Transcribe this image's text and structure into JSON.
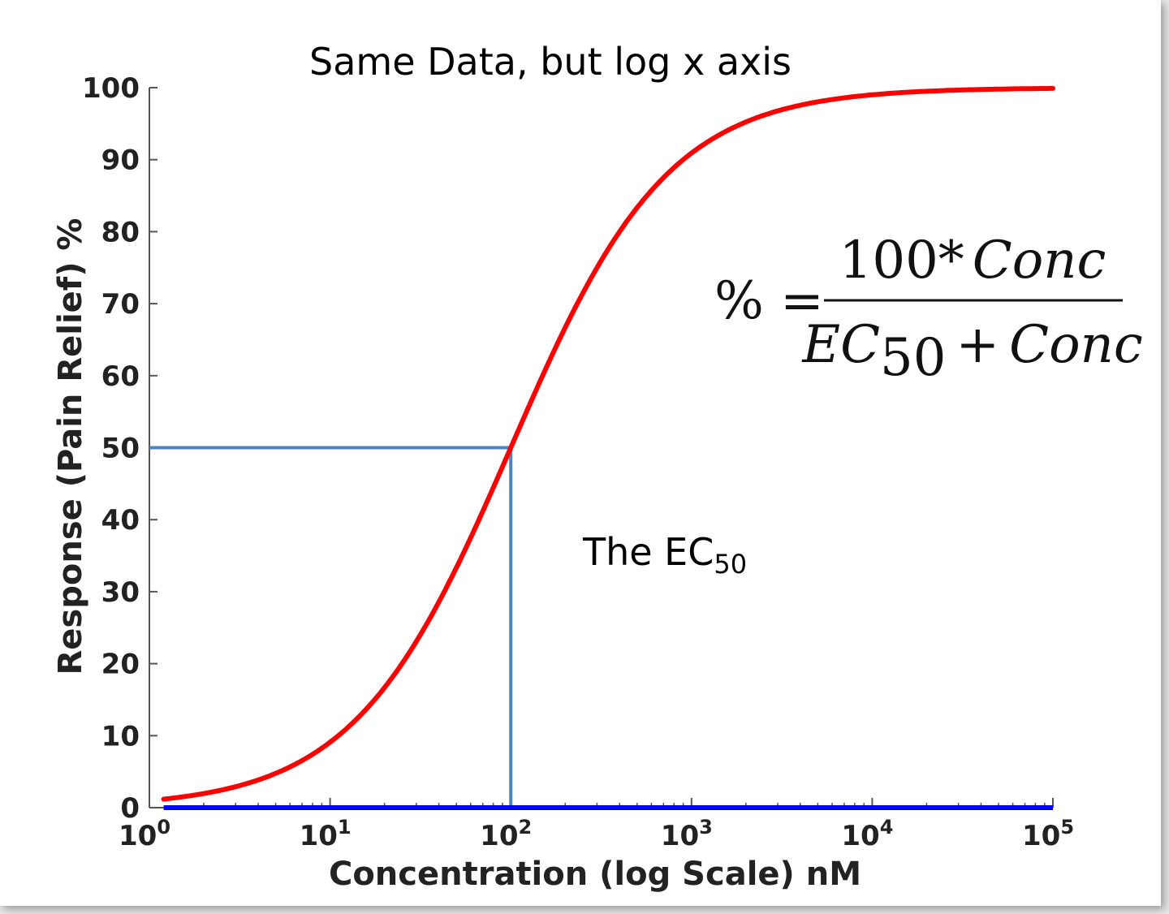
{
  "chart_data": {
    "type": "line",
    "title": "Same Data, but log x axis",
    "xlabel": "Concentration (log Scale) nM",
    "ylabel": "Response (Pain Relief) %",
    "xscale": "log",
    "xlim": [
      1,
      100000
    ],
    "ylim": [
      0,
      100
    ],
    "x_ticks": [
      {
        "base": "10",
        "exp": "0"
      },
      {
        "base": "10",
        "exp": "1"
      },
      {
        "base": "10",
        "exp": "2"
      },
      {
        "base": "10",
        "exp": "3"
      },
      {
        "base": "10",
        "exp": "4"
      },
      {
        "base": "10",
        "exp": "5"
      }
    ],
    "y_ticks": [
      "0",
      "10",
      "20",
      "30",
      "40",
      "50",
      "60",
      "70",
      "80",
      "90",
      "100"
    ],
    "ec50": 100,
    "ec50_response": 50,
    "curve": {
      "equation": "% = 100*Conc / (EC50 + Conc)",
      "x_start": 1.2,
      "x_end": 100000,
      "color": "#ff0000"
    },
    "ec50_guide_color": "#4f81bd",
    "baseline_color": "#0000ff",
    "annotation": {
      "text": "The EC",
      "subscript": "50"
    },
    "formula": {
      "lhs": "% =",
      "numerator": {
        "number": "100",
        "op": "*",
        "var": "Conc"
      },
      "denominator": {
        "var": "EC",
        "sub": "50",
        "op": "+",
        "var2": "Conc"
      }
    }
  }
}
